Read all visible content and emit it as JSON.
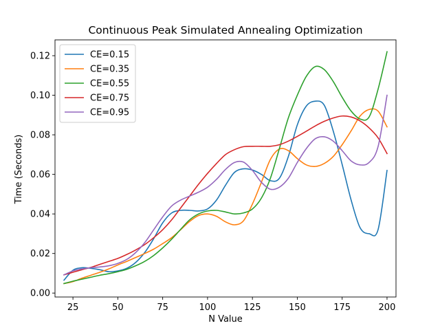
{
  "chart_data": {
    "type": "line",
    "title": "Continuous Peak Simulated Annealing Optimization",
    "xlabel": "N Value",
    "ylabel": "Time (Seconds)",
    "xlim": [
      15,
      205
    ],
    "ylim": [
      -0.002,
      0.128
    ],
    "xticks": [
      25,
      50,
      75,
      100,
      125,
      150,
      175,
      200
    ],
    "yticks": [
      0.0,
      0.02,
      0.04,
      0.06,
      0.08,
      0.1,
      0.12
    ],
    "ytick_labels": [
      "0.00",
      "0.02",
      "0.04",
      "0.06",
      "0.08",
      "0.10",
      "0.12"
    ],
    "grid": false,
    "legend": "top-left",
    "x": [
      20,
      25,
      30,
      35,
      40,
      45,
      50,
      55,
      60,
      65,
      70,
      75,
      80,
      85,
      90,
      95,
      100,
      105,
      110,
      115,
      120,
      125,
      130,
      135,
      140,
      145,
      150,
      155,
      160,
      165,
      170,
      175,
      180,
      185,
      190,
      195,
      200
    ],
    "series": [
      {
        "name": "CE=0.15",
        "color": "#1f77b4",
        "values": [
          0.0065,
          0.0115,
          0.0128,
          0.0125,
          0.0118,
          0.0108,
          0.0112,
          0.0125,
          0.0155,
          0.0205,
          0.0275,
          0.0355,
          0.0405,
          0.0418,
          0.0418,
          0.0415,
          0.0425,
          0.047,
          0.0545,
          0.061,
          0.0628,
          0.0622,
          0.06,
          0.0568,
          0.058,
          0.069,
          0.085,
          0.0945,
          0.097,
          0.095,
          0.082,
          0.065,
          0.047,
          0.033,
          0.03,
          0.032,
          0.062
        ]
      },
      {
        "name": "CE=0.35",
        "color": "#ff7f0e",
        "values": [
          0.0048,
          0.0058,
          0.0075,
          0.009,
          0.0105,
          0.0122,
          0.0142,
          0.016,
          0.018,
          0.02,
          0.0222,
          0.025,
          0.028,
          0.032,
          0.0362,
          0.0392,
          0.04,
          0.0388,
          0.036,
          0.0345,
          0.0365,
          0.045,
          0.056,
          0.0675,
          0.0728,
          0.072,
          0.068,
          0.0648,
          0.064,
          0.0655,
          0.069,
          0.075,
          0.082,
          0.0895,
          0.0928,
          0.092,
          0.084
        ]
      },
      {
        "name": "CE=0.55",
        "color": "#2ca02c",
        "values": [
          0.0048,
          0.006,
          0.007,
          0.008,
          0.009,
          0.0098,
          0.0108,
          0.012,
          0.0138,
          0.016,
          0.019,
          0.0228,
          0.0272,
          0.0322,
          0.037,
          0.04,
          0.0415,
          0.0418,
          0.041,
          0.04,
          0.0405,
          0.0425,
          0.048,
          0.058,
          0.073,
          0.0885,
          0.1,
          0.1095,
          0.1145,
          0.113,
          0.107,
          0.099,
          0.092,
          0.088,
          0.089,
          0.103,
          0.122
        ]
      },
      {
        "name": "CE=0.75",
        "color": "#d62728",
        "values": [
          0.0092,
          0.0105,
          0.0118,
          0.013,
          0.0145,
          0.016,
          0.0175,
          0.0195,
          0.0218,
          0.0245,
          0.028,
          0.032,
          0.037,
          0.043,
          0.049,
          0.055,
          0.0605,
          0.0655,
          0.07,
          0.0725,
          0.074,
          0.0742,
          0.0742,
          0.0742,
          0.075,
          0.0768,
          0.0792,
          0.0818,
          0.0845,
          0.0868,
          0.0885,
          0.0895,
          0.089,
          0.087,
          0.0835,
          0.0785,
          0.0705
        ]
      },
      {
        "name": "CE=0.95",
        "color": "#9467bd",
        "values": [
          0.0092,
          0.0112,
          0.0122,
          0.0128,
          0.0132,
          0.0138,
          0.015,
          0.017,
          0.0205,
          0.0255,
          0.032,
          0.0385,
          0.044,
          0.047,
          0.049,
          0.051,
          0.0535,
          0.0575,
          0.0625,
          0.066,
          0.0662,
          0.062,
          0.056,
          0.0525,
          0.0535,
          0.058,
          0.066,
          0.073,
          0.078,
          0.079,
          0.0768,
          0.072,
          0.0668,
          0.0648,
          0.066,
          0.074,
          0.1
        ]
      }
    ]
  }
}
